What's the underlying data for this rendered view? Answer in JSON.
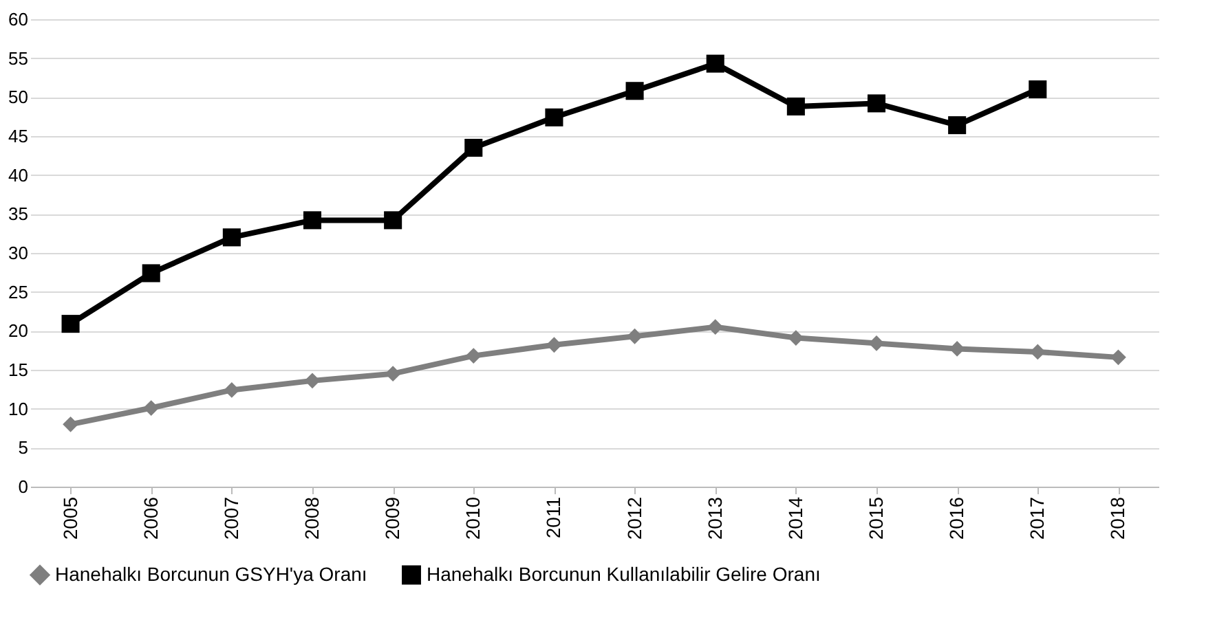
{
  "chart_data": {
    "type": "line",
    "categories": [
      "2005",
      "2006",
      "2007",
      "2008",
      "2009",
      "2010",
      "2011",
      "2012",
      "2013",
      "2014",
      "2015",
      "2016",
      "2017",
      "2018"
    ],
    "series": [
      {
        "name": "Hanehalkı Borcunun GSYH'ya Oranı",
        "color": "#7f7f7f",
        "marker": "diamond",
        "values": [
          8.0,
          10.1,
          12.4,
          13.6,
          14.5,
          16.8,
          18.2,
          19.3,
          20.5,
          19.1,
          18.4,
          17.7,
          17.3,
          16.6
        ]
      },
      {
        "name": "Hanehalkı Borcunun Kullanılabilir Gelire Oranı",
        "color": "#000000",
        "marker": "square",
        "values": [
          20.9,
          27.4,
          32.0,
          34.2,
          34.2,
          43.5,
          47.4,
          50.8,
          54.3,
          48.8,
          49.2,
          46.4,
          51.0,
          null
        ]
      }
    ],
    "ylim": [
      0,
      60
    ],
    "yticks": [
      0,
      5,
      10,
      15,
      20,
      25,
      30,
      35,
      40,
      45,
      50,
      55,
      60
    ],
    "grid": "y",
    "legend": "bottom",
    "line_style": "solid"
  }
}
